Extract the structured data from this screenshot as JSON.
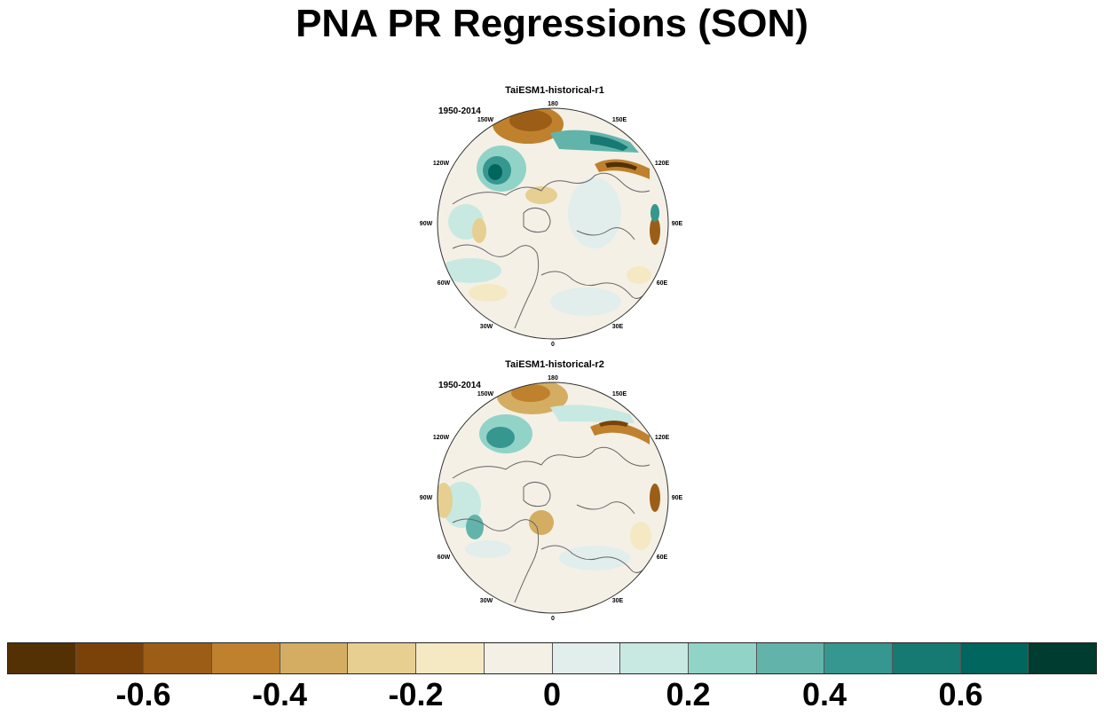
{
  "title": "PNA PR Regressions (SON)",
  "panels": [
    {
      "title": "TaiESM1-historical-r1",
      "period": "1950-2014"
    },
    {
      "title": "TaiESM1-historical-r2",
      "period": "1950-2014"
    }
  ],
  "longitude_labels": [
    "180",
    "150E",
    "120E",
    "90E",
    "60E",
    "30E",
    "0",
    "30W",
    "60W",
    "90W",
    "120W",
    "150W"
  ],
  "colorbar": {
    "colors": [
      "#543005",
      "#7a4209",
      "#9c5e17",
      "#bf812d",
      "#d4ad62",
      "#e6cf91",
      "#f5e9c4",
      "#f4f0e6",
      "#e2eeec",
      "#c7e9e2",
      "#92d3c8",
      "#62b4aa",
      "#35978f",
      "#167a72",
      "#01665e",
      "#003c30"
    ],
    "tick_labels": [
      "-0.6",
      "-0.4",
      "-0.2",
      "0",
      "0.2",
      "0.4",
      "0.6"
    ]
  },
  "chart_data": {
    "type": "heatmap",
    "title": "PNA PR Regressions (SON)",
    "projection": "north polar stereographic",
    "levels": [
      -0.7,
      -0.6,
      -0.5,
      -0.4,
      -0.3,
      -0.2,
      -0.1,
      0,
      0.1,
      0.2,
      0.3,
      0.4,
      0.5,
      0.6,
      0.7
    ],
    "maps": [
      {
        "name": "TaiESM1-historical-r1",
        "period": "1950-2014"
      },
      {
        "name": "TaiESM1-historical-r2",
        "period": "1950-2014"
      }
    ]
  }
}
